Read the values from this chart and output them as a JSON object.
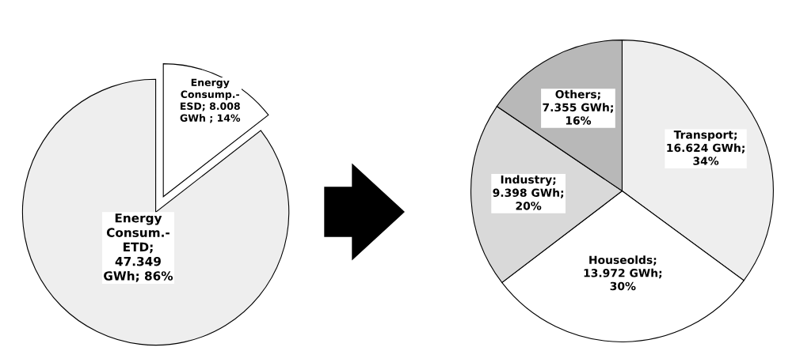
{
  "chart_data": [
    {
      "type": "pie",
      "categories": [
        "Energy Consum.- ETD",
        "Energy Consump.- ESD"
      ],
      "values": [
        47.349,
        8.008
      ],
      "value_labels": [
        "; 47.349 GWh; 86%",
        "; 8.008 GWh   ; 14%"
      ],
      "colors": [
        "#eeeeee",
        "#ffffff"
      ],
      "legend": false
    },
    {
      "type": "pie",
      "categories": [
        "Transport",
        "Houseolds",
        "Industry",
        "Others"
      ],
      "values": [
        16.624,
        13.972,
        9.398,
        7.355
      ],
      "value_labels": [
        "; 16.624 GWh; 34%",
        "; 13.972 GWh; 30%",
        "; 9.398 GWh; 20%",
        "; 7.355 GWh; 16%"
      ],
      "colors": [
        "#eeeeee",
        "#ffffff",
        "#d9d9d9",
        "#b8b8b8"
      ],
      "legend": false
    }
  ]
}
